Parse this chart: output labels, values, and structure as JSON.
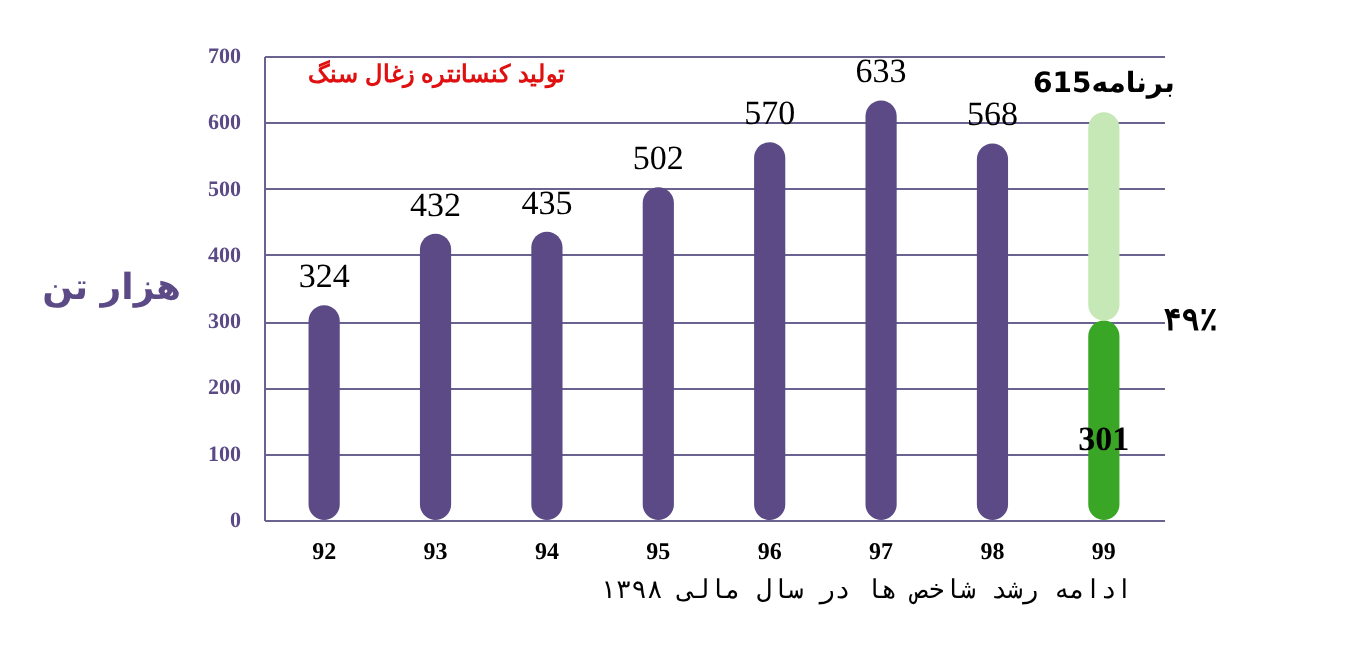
{
  "chart_data": {
    "type": "bar",
    "stacked": true,
    "title": "تولید کنسانتره زغال سنگ",
    "ylabel": "هزار تن",
    "categories": [
      "92",
      "93",
      "94",
      "95",
      "96",
      "97",
      "98",
      "99"
    ],
    "series": [
      {
        "colors": [
          "#5b4a86",
          "#5b4a86",
          "#5b4a86",
          "#5b4a86",
          "#5b4a86",
          "#5b4a86",
          "#5b4a86",
          "#3aa626"
        ],
        "values": [
          324,
          432,
          435,
          502,
          570,
          633,
          568,
          301
        ],
        "value_labels": [
          "324",
          "432",
          "435",
          "502",
          "570",
          "633",
          "568",
          "301"
        ]
      },
      {
        "color": "#c6e8b6",
        "values": [
          null,
          null,
          null,
          null,
          null,
          null,
          null,
          314
        ]
      }
    ],
    "totals": [
      null,
      null,
      null,
      null,
      null,
      null,
      null,
      "برنامه615"
    ],
    "annotations": [
      {
        "text": "۴۹٪",
        "x": "99",
        "y": 301
      },
      "ادامه رشد شاخص ها در سال مالی ۱۳۹۸"
    ],
    "ylim": [
      0,
      700
    ],
    "yticks": [
      0,
      100,
      200,
      300,
      400,
      500,
      600,
      700
    ],
    "grid": "y"
  }
}
